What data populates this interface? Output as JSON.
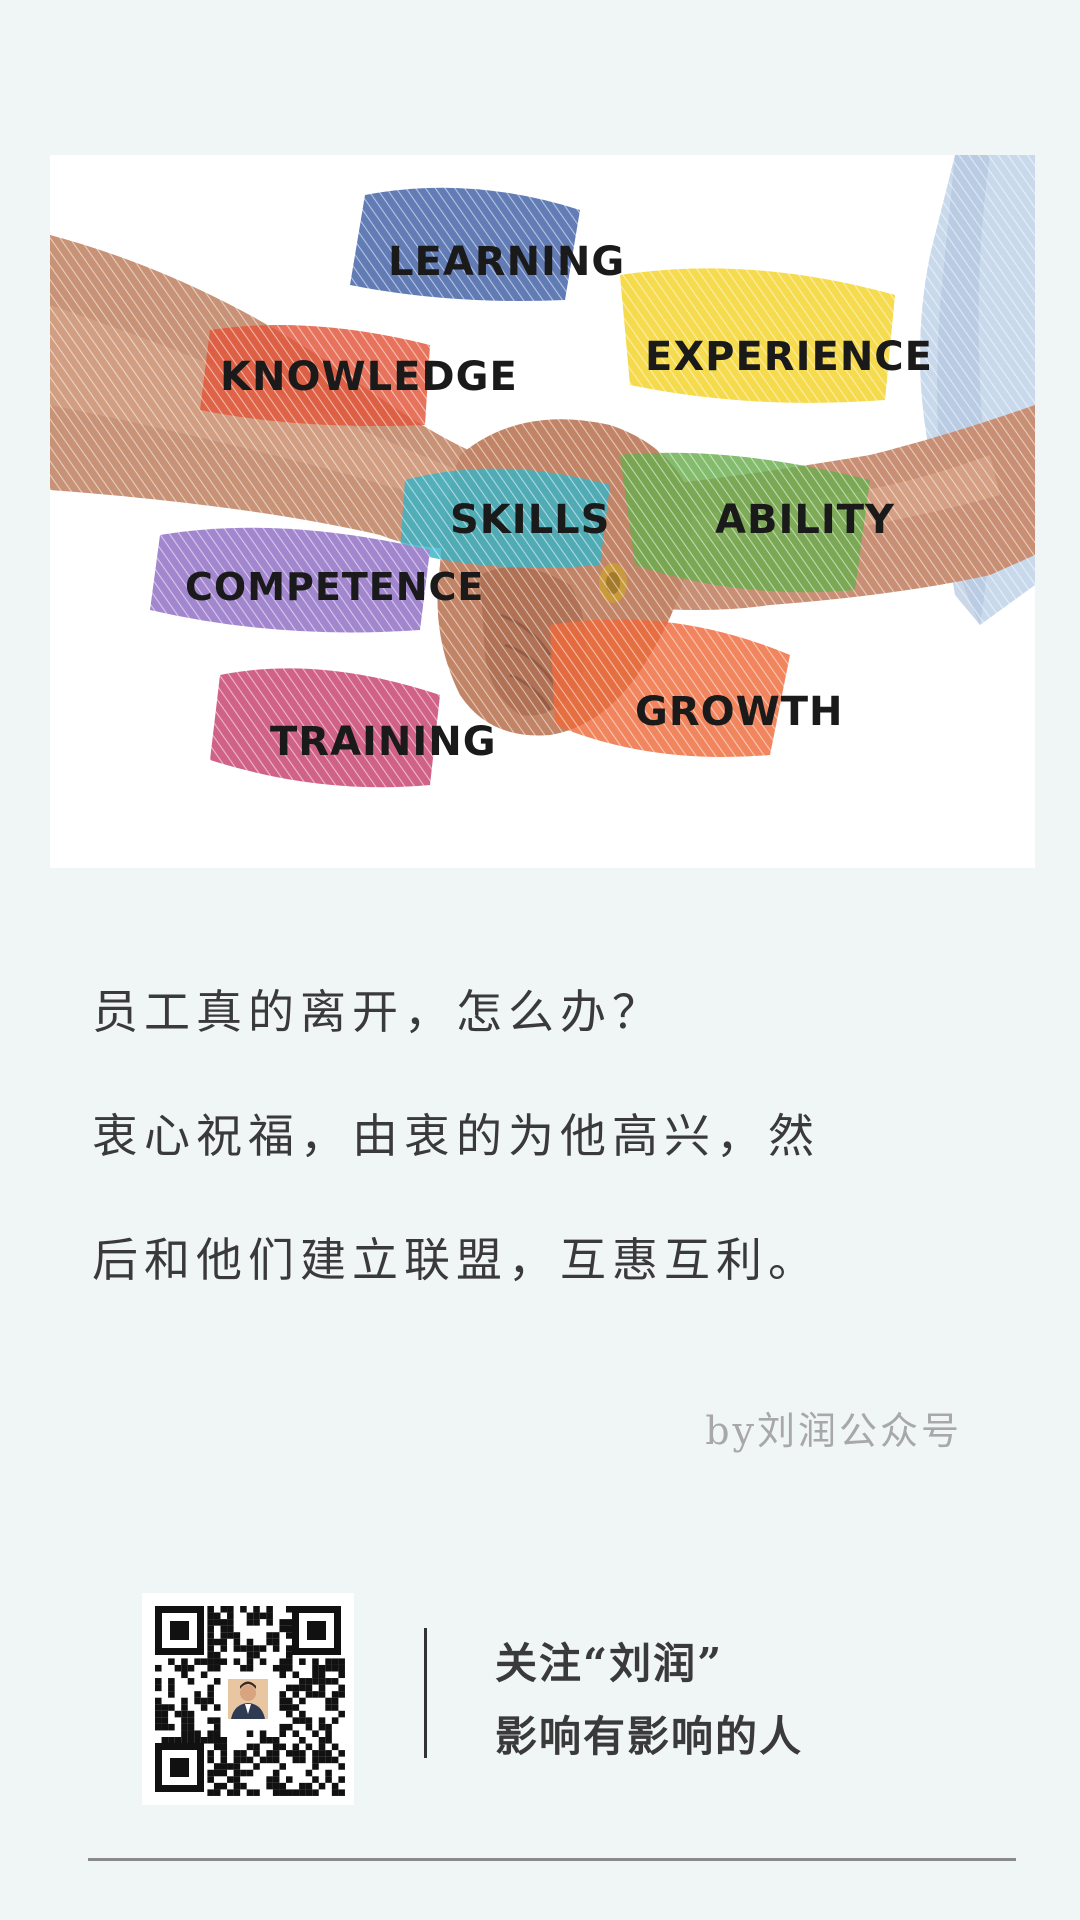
{
  "illustration": {
    "words": {
      "learning": "LEARNING",
      "knowledge": "KNOWLEDGE",
      "experience": "EXPERIENCE",
      "skills": "SKILLS",
      "ability": "ABILITY",
      "competence": "COMPETENCE",
      "growth": "GROWTH",
      "training": "TRAINING"
    },
    "colors": {
      "learning": "#3f5fa6",
      "knowledge": "#e2553a",
      "experience": "#f3d326",
      "skills": "#38b4c7",
      "ability": "#6aae4e",
      "competence": "#8d6cc4",
      "growth": "#ee6a3b",
      "training": "#c73f6d"
    }
  },
  "quote": {
    "line1": "员工真的离开，怎么办？",
    "line2": "衷心祝福，由衷的为他高兴，然",
    "line3": "后和他们建立联盟，互惠互利。"
  },
  "byline": "by刘润公众号",
  "footer": {
    "follow_line1": "关注“刘润”",
    "follow_line2": "影响有影响的人"
  }
}
